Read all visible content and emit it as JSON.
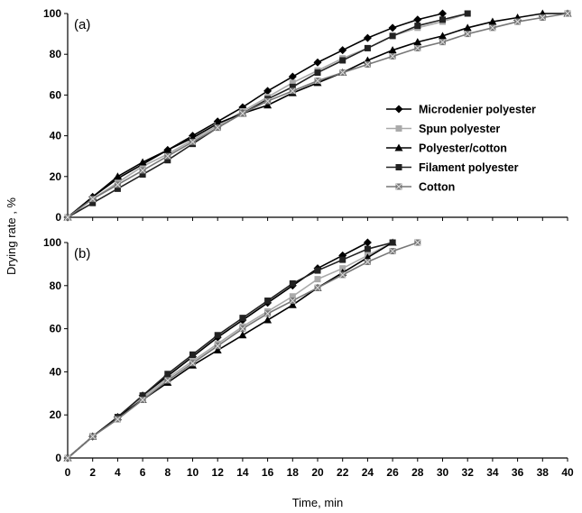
{
  "figure": {
    "xlabel": "Time, min",
    "ylabel": "Drying rate , %"
  },
  "legend": [
    {
      "name": "Microdenier polyester",
      "marker": "diamond",
      "color": "#000000"
    },
    {
      "name": "Spun polyester",
      "marker": "square",
      "color": "#aaaaaa"
    },
    {
      "name": "Polyester/cotton",
      "marker": "triangle",
      "color": "#000000"
    },
    {
      "name": "Filament polyester",
      "marker": "square",
      "color": "#222222"
    },
    {
      "name": "Cotton",
      "marker": "x-square",
      "color": "#777777"
    }
  ],
  "chart_data": [
    {
      "type": "line",
      "panel_label": "(a)",
      "xlim": [
        0,
        40
      ],
      "ylim": [
        0,
        100
      ],
      "x_ticks": [
        0,
        2,
        4,
        6,
        8,
        10,
        12,
        14,
        16,
        18,
        20,
        22,
        24,
        26,
        28,
        30,
        32,
        34,
        36,
        38,
        40
      ],
      "y_ticks": [
        0,
        20,
        40,
        60,
        80,
        100
      ],
      "grid": false,
      "legend_position": "right",
      "series": [
        {
          "name": "Microdenier polyester",
          "x": [
            0,
            2,
            4,
            6,
            8,
            10,
            12,
            14,
            16,
            18,
            20,
            22,
            24,
            26,
            28,
            30
          ],
          "y": [
            0,
            10,
            19,
            26,
            33,
            40,
            47,
            54,
            62,
            69,
            76,
            82,
            88,
            93,
            97,
            100
          ]
        },
        {
          "name": "Spun polyester",
          "x": [
            0,
            2,
            4,
            6,
            8,
            10,
            12,
            14,
            16,
            18,
            20,
            22,
            24,
            26,
            28,
            30,
            32
          ],
          "y": [
            0,
            9,
            17,
            25,
            31,
            38,
            45,
            52,
            59,
            66,
            72,
            78,
            83,
            89,
            93,
            96,
            100
          ]
        },
        {
          "name": "Polyester/cotton",
          "x": [
            0,
            2,
            4,
            6,
            8,
            10,
            12,
            14,
            16,
            18,
            20,
            22,
            24,
            26,
            28,
            30,
            32,
            34,
            36,
            38,
            40
          ],
          "y": [
            0,
            10,
            20,
            27,
            33,
            39,
            46,
            51,
            55,
            61,
            66,
            71,
            77,
            82,
            86,
            89,
            93,
            96,
            98,
            100,
            100
          ]
        },
        {
          "name": "Filament polyester",
          "x": [
            0,
            2,
            4,
            6,
            8,
            10,
            12,
            14,
            16,
            18,
            20,
            22,
            24,
            26,
            28,
            30,
            32
          ],
          "y": [
            0,
            7,
            14,
            21,
            28,
            36,
            44,
            51,
            58,
            64,
            71,
            77,
            83,
            89,
            94,
            97,
            100
          ]
        },
        {
          "name": "Cotton",
          "x": [
            0,
            2,
            4,
            6,
            8,
            10,
            12,
            14,
            16,
            18,
            20,
            22,
            24,
            26,
            28,
            30,
            32,
            34,
            36,
            38,
            40
          ],
          "y": [
            0,
            9,
            16,
            23,
            30,
            37,
            44,
            51,
            57,
            62,
            67,
            71,
            75,
            79,
            83,
            86,
            90,
            93,
            96,
            98,
            100
          ]
        }
      ]
    },
    {
      "type": "line",
      "panel_label": "(b)",
      "xlim": [
        0,
        40
      ],
      "ylim": [
        0,
        100
      ],
      "x_ticks": [
        0,
        2,
        4,
        6,
        8,
        10,
        12,
        14,
        16,
        18,
        20,
        22,
        24,
        26,
        28,
        30,
        32,
        34,
        36,
        38,
        40
      ],
      "y_ticks": [
        0,
        20,
        40,
        60,
        80,
        100
      ],
      "grid": false,
      "series": [
        {
          "name": "Microdenier polyester",
          "x": [
            0,
            2,
            4,
            6,
            8,
            10,
            12,
            14,
            16,
            18,
            20,
            22,
            24
          ],
          "y": [
            0,
            10,
            19,
            29,
            38,
            47,
            56,
            64,
            72,
            80,
            88,
            94,
            100
          ]
        },
        {
          "name": "Spun polyester",
          "x": [
            0,
            2,
            4,
            6,
            8,
            10,
            12,
            14,
            16,
            18,
            20,
            22,
            24,
            26
          ],
          "y": [
            0,
            10,
            19,
            28,
            37,
            45,
            53,
            61,
            68,
            75,
            83,
            88,
            94,
            100
          ]
        },
        {
          "name": "Polyester/cotton",
          "x": [
            0,
            2,
            4,
            6,
            8,
            10,
            12,
            14,
            16,
            18,
            20,
            22,
            24,
            26
          ],
          "y": [
            0,
            10,
            19,
            27,
            35,
            43,
            50,
            57,
            64,
            71,
            79,
            86,
            93,
            100
          ]
        },
        {
          "name": "Filament polyester",
          "x": [
            0,
            2,
            4,
            6,
            8,
            10,
            12,
            14,
            16,
            18,
            20,
            22,
            24,
            26
          ],
          "y": [
            0,
            10,
            19,
            29,
            39,
            48,
            57,
            65,
            73,
            81,
            87,
            92,
            97,
            100
          ]
        },
        {
          "name": "Cotton",
          "x": [
            0,
            2,
            4,
            6,
            8,
            10,
            12,
            14,
            16,
            18,
            20,
            22,
            24,
            26,
            28
          ],
          "y": [
            0,
            10,
            18,
            27,
            36,
            44,
            52,
            60,
            67,
            73,
            79,
            85,
            91,
            96,
            100
          ]
        }
      ]
    }
  ]
}
